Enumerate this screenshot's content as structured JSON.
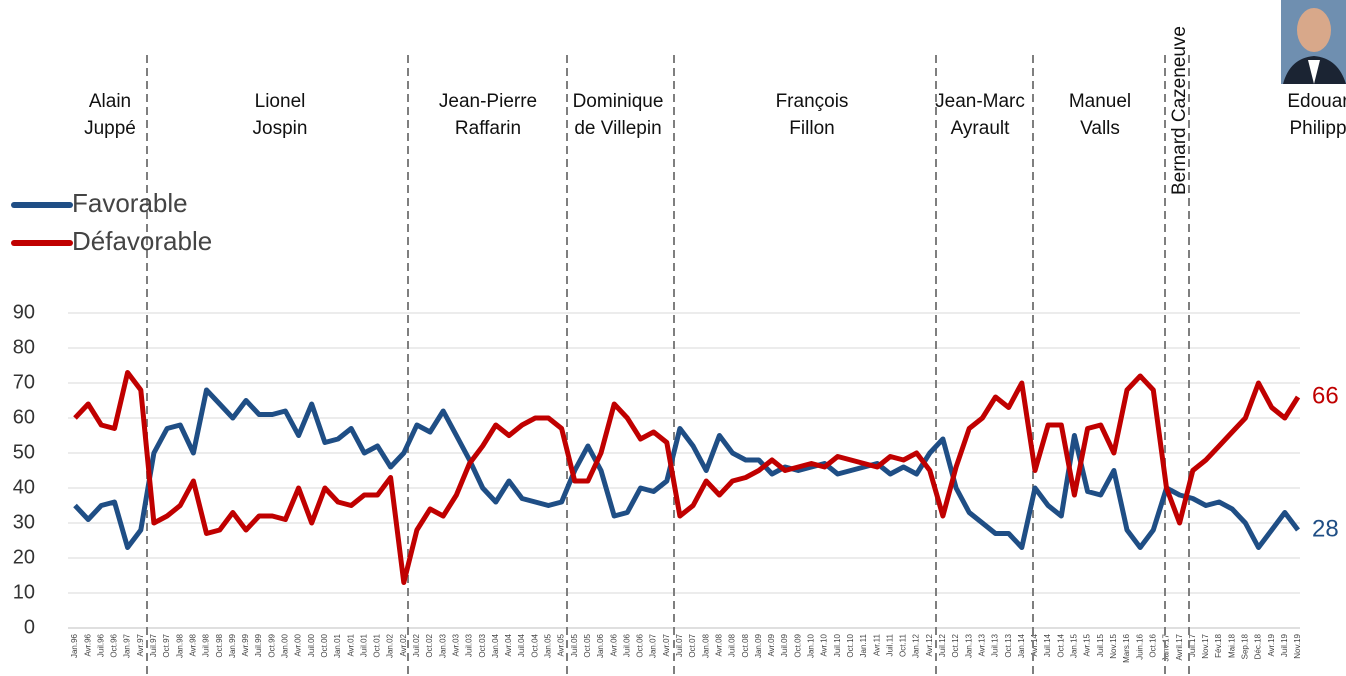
{
  "chart_data": {
    "type": "line",
    "categories": [
      "Jan.96",
      "Avr.96",
      "Juil.96",
      "Oct.96",
      "Jan.97",
      "Avr.97",
      "Juil.97",
      "Oct.97",
      "Jan.98",
      "Avr.98",
      "Juil.98",
      "Oct.98",
      "Jan.99",
      "Avr.99",
      "Juil.99",
      "Oct.99",
      "Jan.00",
      "Avr.00",
      "Juil.00",
      "Oct.00",
      "Jan.01",
      "Avr.01",
      "Juil.01",
      "Oct.01",
      "Jan.02",
      "Avr.02",
      "Juil.02",
      "Oct.02",
      "Jan.03",
      "Avr.03",
      "Juil.03",
      "Oct.03",
      "Jan.04",
      "Avr.04",
      "Juil.04",
      "Oct.04",
      "Jan.05",
      "Avr.05",
      "Juil.05",
      "Oct.05",
      "Jan.06",
      "Avr.06",
      "Juil.06",
      "Oct.06",
      "Jan.07",
      "Avr.07",
      "Juil.07",
      "Oct.07",
      "Jan.08",
      "Avr.08",
      "Juil.08",
      "Oct.08",
      "Jan.09",
      "Avr.09",
      "Juil.09",
      "Oct.09",
      "Jan.10",
      "Avr.10",
      "Juil.10",
      "Oct.10",
      "Jan.11",
      "Avr.11",
      "Juil.11",
      "Oct.11",
      "Jan.12",
      "Avr.12",
      "Juil.12",
      "Oct.12",
      "Jan.13",
      "Avr.13",
      "Juil.13",
      "Oct.13",
      "Jan.14",
      "Avr.14",
      "Juil.14",
      "Oct.14",
      "Jan.15",
      "Avr.15",
      "Juil.15",
      "Nov.15",
      "Mars.16",
      "Juin.16",
      "Oct.16",
      "Janv.17",
      "Avril.17",
      "Juil.17",
      "Nov.17",
      "Fév.18",
      "Mai.18",
      "Sep.18",
      "Déc.18",
      "Avr.19",
      "Juil.19",
      "Nov.19"
    ],
    "series": [
      {
        "name": "Favorable",
        "color": "#1f4e85",
        "values": [
          35,
          31,
          35,
          36,
          23,
          28,
          50,
          57,
          58,
          50,
          68,
          64,
          60,
          65,
          61,
          61,
          62,
          55,
          64,
          53,
          54,
          57,
          50,
          52,
          46,
          50,
          58,
          56,
          62,
          55,
          48,
          40,
          36,
          42,
          37,
          36,
          35,
          36,
          45,
          52,
          45,
          32,
          33,
          40,
          39,
          42,
          57,
          52,
          45,
          55,
          50,
          48,
          48,
          44,
          46,
          45,
          46,
          47,
          44,
          45,
          46,
          47,
          44,
          46,
          44,
          50,
          54,
          40,
          33,
          30,
          27,
          27,
          23,
          40,
          35,
          32,
          55,
          39,
          38,
          45,
          28,
          23,
          28,
          40,
          38,
          37,
          35,
          36,
          34,
          30,
          23,
          28,
          33,
          28
        ]
      },
      {
        "name": "Défavorable",
        "color": "#c00000",
        "values": [
          60,
          64,
          58,
          57,
          73,
          68,
          30,
          32,
          35,
          42,
          27,
          28,
          33,
          28,
          32,
          32,
          31,
          40,
          30,
          40,
          36,
          35,
          38,
          38,
          43,
          13,
          28,
          34,
          32,
          38,
          47,
          52,
          58,
          55,
          58,
          60,
          60,
          57,
          42,
          42,
          50,
          64,
          60,
          54,
          56,
          53,
          32,
          35,
          42,
          38,
          42,
          43,
          45,
          48,
          45,
          46,
          47,
          46,
          49,
          48,
          47,
          46,
          49,
          48,
          50,
          45,
          32,
          46,
          57,
          60,
          66,
          63,
          70,
          45,
          58,
          58,
          38,
          57,
          58,
          50,
          68,
          72,
          68,
          40,
          30,
          45,
          48,
          52,
          56,
          60,
          70,
          63,
          60,
          66
        ]
      }
    ],
    "ylim": [
      0,
      90
    ],
    "yticks": [
      0,
      10,
      20,
      30,
      40,
      50,
      60,
      70,
      80,
      90
    ],
    "grid": true,
    "periods": [
      [
        "Alain",
        "Juppé"
      ],
      [
        "Lionel",
        "Jospin"
      ],
      [
        "Jean-Pierre",
        "Raffarin"
      ],
      [
        "Dominique",
        "de Villepin"
      ],
      [
        "François",
        "Fillon"
      ],
      [
        "Jean-Marc",
        "Ayrault"
      ],
      [
        "Manuel",
        "Valls"
      ],
      [
        "Bernard Cazeneuve"
      ],
      [
        "Edouar",
        "Philipp"
      ]
    ]
  }
}
